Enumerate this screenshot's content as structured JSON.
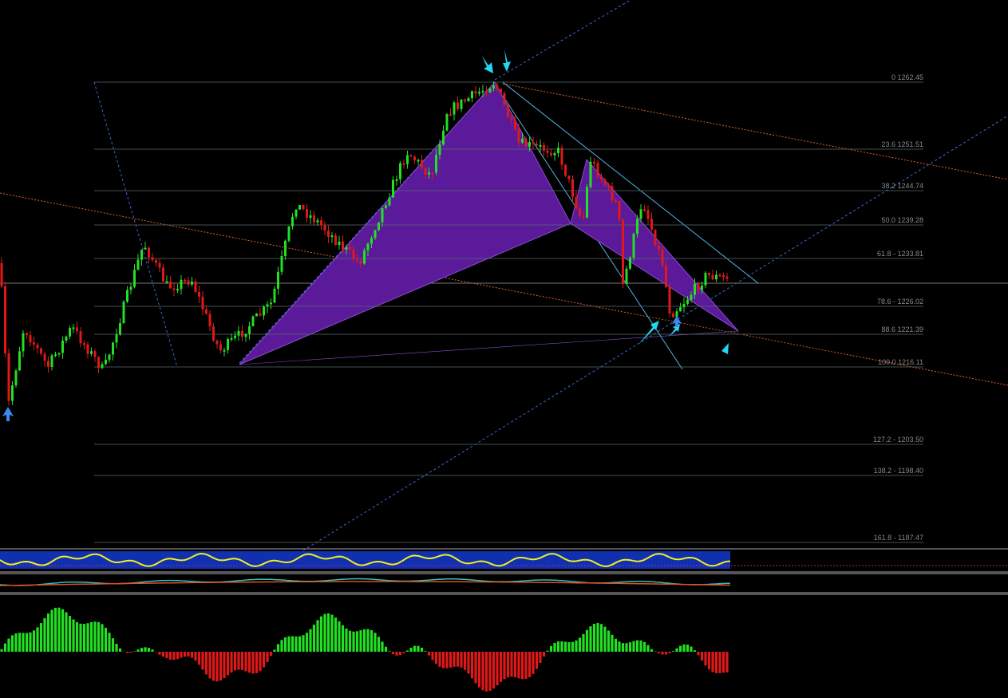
{
  "fib_levels": [
    {
      "label": "0 1262.45"
    },
    {
      "label": "23.6 1251.51"
    },
    {
      "label": "38.2 1244.74"
    },
    {
      "label": "50.0 1239.28"
    },
    {
      "label": "61.8 - 1233.81"
    },
    {
      "label": "78.6 - 1226.02"
    },
    {
      "label": "88.6 1221.39"
    },
    {
      "label": "100.0 1216.11"
    },
    {
      "label": "127.2 - 1203.50"
    },
    {
      "label": "138.2 - 1198.40"
    },
    {
      "label": "161.8 - 1187.47"
    }
  ]
}
